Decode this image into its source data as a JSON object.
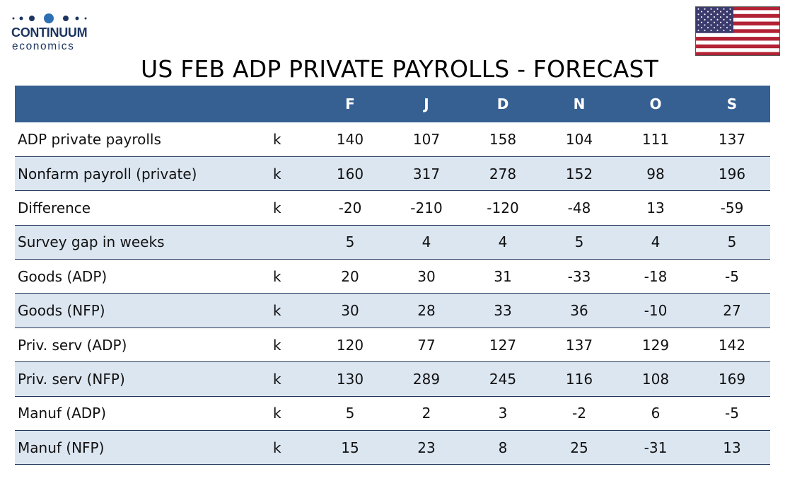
{
  "logo": {
    "brand": "CONTINUUM",
    "sub": "economics",
    "color": "#1c3560"
  },
  "flag": {
    "icon": "us-flag-icon",
    "colors": {
      "red": "#b22234",
      "white": "#ffffff",
      "blue": "#3c3b6e"
    }
  },
  "title": "US FEB ADP PRIVATE PAYROLLS - FORECAST",
  "table": {
    "header_color": "#366092",
    "stripe_color": "#dce6f1",
    "columns": [
      "",
      "",
      "F",
      "J",
      "D",
      "N",
      "O",
      "S"
    ],
    "rows": [
      {
        "label": "ADP private payrolls",
        "unit": "k",
        "values": [
          "140",
          "107",
          "158",
          "104",
          "111",
          "137"
        ]
      },
      {
        "label": "Nonfarm payroll (private)",
        "unit": "k",
        "values": [
          "160",
          "317",
          "278",
          "152",
          "98",
          "196"
        ]
      },
      {
        "label": "Difference",
        "unit": "k",
        "values": [
          "-20",
          "-210",
          "-120",
          "-48",
          "13",
          "-59"
        ]
      },
      {
        "label": "Survey gap in weeks",
        "unit": "",
        "values": [
          "5",
          "4",
          "4",
          "5",
          "4",
          "5"
        ]
      },
      {
        "label": "Goods (ADP)",
        "unit": "k",
        "values": [
          "20",
          "30",
          "31",
          "-33",
          "-18",
          "-5"
        ]
      },
      {
        "label": "Goods (NFP)",
        "unit": "k",
        "values": [
          "30",
          "28",
          "33",
          "36",
          "-10",
          "27"
        ]
      },
      {
        "label": "Priv. serv (ADP)",
        "unit": "k",
        "values": [
          "120",
          "77",
          "127",
          "137",
          "129",
          "142"
        ]
      },
      {
        "label": "Priv. serv (NFP)",
        "unit": "k",
        "values": [
          "130",
          "289",
          "245",
          "116",
          "108",
          "169"
        ]
      },
      {
        "label": "Manuf (ADP)",
        "unit": "k",
        "values": [
          "5",
          "2",
          "3",
          "-2",
          "6",
          "-5"
        ]
      },
      {
        "label": "Manuf (NFP)",
        "unit": "k",
        "values": [
          "15",
          "23",
          "8",
          "25",
          "-31",
          "13"
        ]
      }
    ]
  }
}
